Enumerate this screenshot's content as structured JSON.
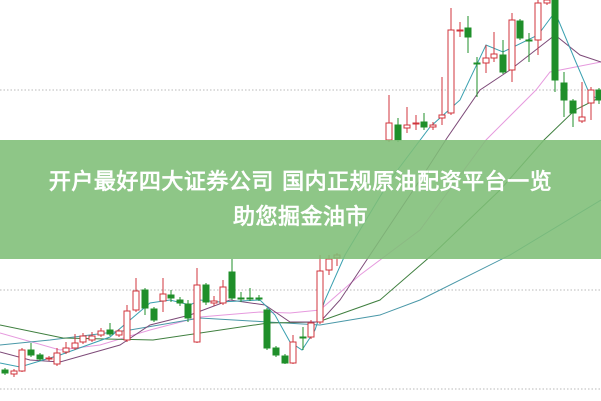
{
  "headline": {
    "line1": "开户最好四大证券公司 国内正规原油配资平台一览",
    "line2": "助您掘金油市"
  },
  "colors": {
    "banner": "#7ebe76",
    "candle_up": "#d0343c",
    "candle_down": "#1f8f2a",
    "gridline": "#b8b8b8"
  }
}
